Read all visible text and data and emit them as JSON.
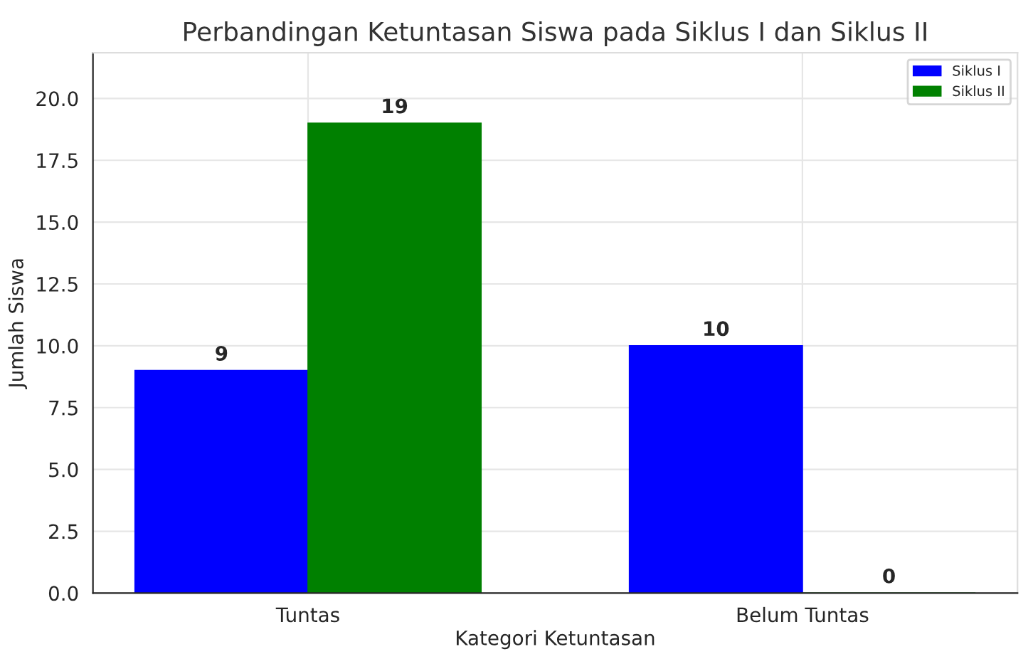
{
  "chart_data": {
    "type": "bar",
    "title": "Perbandingan Ketuntasan Siswa pada Siklus I dan Siklus II",
    "xlabel": "Kategori Ketuntasan",
    "ylabel": "Jumlah Siswa",
    "categories": [
      "Tuntas",
      "Belum Tuntas"
    ],
    "series": [
      {
        "name": "Siklus I",
        "color": "#0000ff",
        "values": [
          9,
          10
        ]
      },
      {
        "name": "Siklus II",
        "color": "#008000",
        "values": [
          19,
          0
        ]
      }
    ],
    "ylim": [
      0,
      21.85
    ],
    "yticks": [
      {
        "value": 0,
        "label": "0.0"
      },
      {
        "value": 2.5,
        "label": "2.5"
      },
      {
        "value": 5,
        "label": "5.0"
      },
      {
        "value": 7.5,
        "label": "7.5"
      },
      {
        "value": 10,
        "label": "10.0"
      },
      {
        "value": 12.5,
        "label": "12.5"
      },
      {
        "value": 15,
        "label": "15.0"
      },
      {
        "value": 17.5,
        "label": "17.5"
      },
      {
        "value": 20,
        "label": "20.0"
      }
    ],
    "grid": true,
    "legend": "top right",
    "data_labels": true
  }
}
